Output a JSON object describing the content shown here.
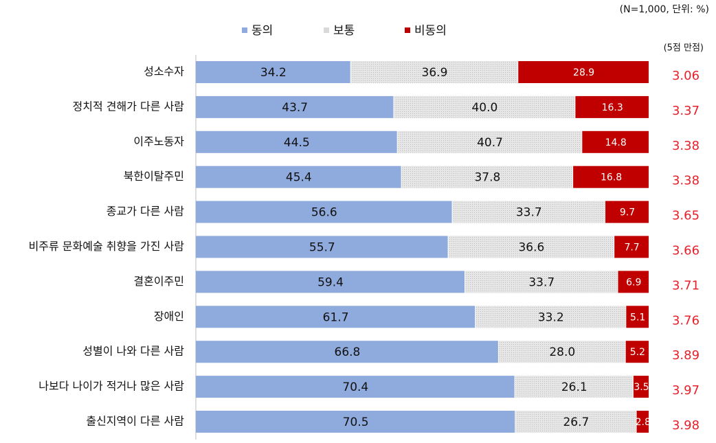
{
  "chart_data": {
    "type": "stacked-bar",
    "note": "(N=1,000, 단위: %)",
    "score_note": "(5점 만점)",
    "categories": [
      "성소수자",
      "정치적 견해가 다른 사람",
      "이주노동자",
      "북한이탈주민",
      "종교가 다른 사람",
      "비주류 문화예술 취향을 가진 사람",
      "결혼이주민",
      "장애인",
      "성별이 나와 다른 사람",
      "나보다 나이가 적거나 많은 사람",
      "출신지역이 다른 사람"
    ],
    "series": [
      {
        "name": "동의",
        "color": "#8faadc",
        "label_color": "#111111",
        "values": [
          34.2,
          43.7,
          44.5,
          45.4,
          56.6,
          55.7,
          59.4,
          61.7,
          66.8,
          70.4,
          70.5
        ],
        "value_labels": [
          "34.2",
          "43.7",
          "44.5",
          "45.4",
          "56.6",
          "55.7",
          "59.4",
          "61.7",
          "66.8",
          "70.4",
          "70.5"
        ]
      },
      {
        "name": "보통",
        "color": "#d9d9d9",
        "label_color": "#111111",
        "values": [
          36.9,
          40.0,
          40.7,
          37.8,
          33.7,
          36.6,
          33.7,
          33.2,
          28.0,
          26.1,
          26.7
        ],
        "value_labels": [
          "36.9",
          "40.0",
          "40.7",
          "37.8",
          "33.7",
          "36.6",
          "33.7",
          "33.2",
          "28.0",
          "26.1",
          "26.7"
        ]
      },
      {
        "name": "비동의",
        "color": "#c00000",
        "label_color": "#ffffff",
        "values": [
          28.9,
          16.3,
          14.8,
          16.8,
          9.7,
          7.7,
          6.9,
          5.1,
          5.2,
          3.5,
          2.8
        ],
        "value_labels": [
          "28.9",
          "16.3",
          "14.8",
          "16.8",
          "9.7",
          "7.7",
          "6.9",
          "5.1",
          "5.2",
          "3.5",
          "2.8"
        ]
      }
    ],
    "scores": [
      3.06,
      3.37,
      3.38,
      3.38,
      3.65,
      3.66,
      3.71,
      3.76,
      3.89,
      3.97,
      3.98
    ],
    "score_color": "#e8202a",
    "xlim": [
      0,
      100
    ]
  }
}
